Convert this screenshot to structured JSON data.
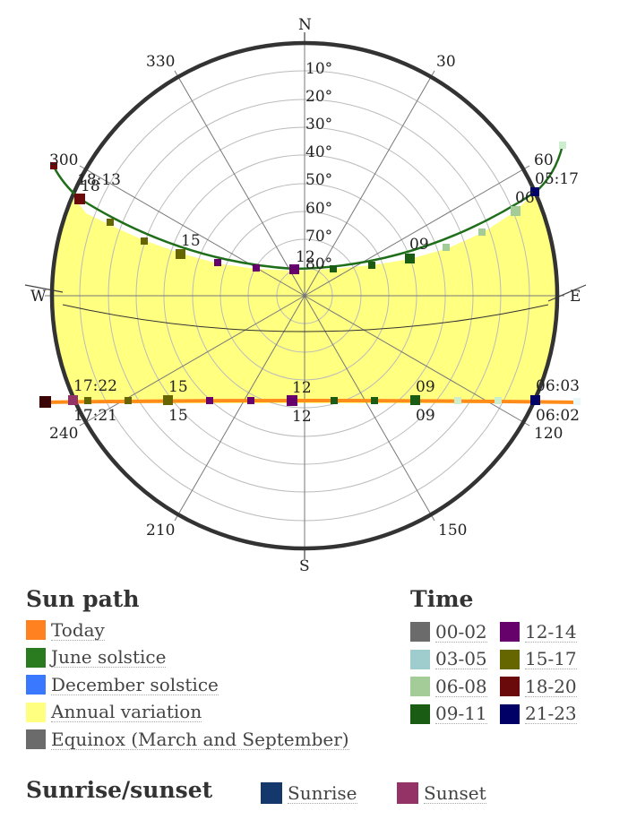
{
  "compass": {
    "north": "N",
    "south": "S",
    "east": "E",
    "west": "W"
  },
  "azimuth_labels": [
    "30",
    "60",
    "120",
    "150",
    "210",
    "240",
    "300",
    "330"
  ],
  "elevation_labels": [
    "10°",
    "20°",
    "30°",
    "40°",
    "50°",
    "60°",
    "70°",
    "80°"
  ],
  "path_labels": {
    "june": {
      "sunrise": "05:17",
      "sunset": "18:13",
      "h06": "06",
      "h09": "09",
      "h12": "12",
      "h15": "15",
      "h18": "18"
    },
    "today": {
      "sunrise": "06:03",
      "sunset": "17:22",
      "h09": "09",
      "h12": "12",
      "h15": "15"
    },
    "equinox": {
      "sunrise": "06:02",
      "sunset": "17:21",
      "h09": "09",
      "h12": "12",
      "h15": "15"
    }
  },
  "legend": {
    "title": "Sun path",
    "items": [
      {
        "label": "Today",
        "color": "#ff8120"
      },
      {
        "label": "June solstice",
        "color": "#2a7a20"
      },
      {
        "label": "December solstice",
        "color": "#3a78ff"
      },
      {
        "label": "Annual variation",
        "color": "#ffff80"
      },
      {
        "label": "Equinox (March and September)",
        "color": "#6b6b6b"
      }
    ]
  },
  "time_legend": {
    "title": "Time",
    "items": [
      {
        "label": "00-02",
        "color": "#6b6b6b"
      },
      {
        "label": "03-05",
        "color": "#9fcccc"
      },
      {
        "label": "06-08",
        "color": "#a3cc99"
      },
      {
        "label": "09-11",
        "color": "#1a5c14"
      },
      {
        "label": "12-14",
        "color": "#66006b"
      },
      {
        "label": "15-17",
        "color": "#666600"
      },
      {
        "label": "18-20",
        "color": "#6b0a0a"
      },
      {
        "label": "21-23",
        "color": "#000066"
      }
    ]
  },
  "sunrise_sunset": {
    "title": "Sunrise/sunset",
    "sunrise": {
      "label": "Sunrise",
      "color": "#14386b"
    },
    "sunset": {
      "label": "Sunset",
      "color": "#943366"
    }
  }
}
